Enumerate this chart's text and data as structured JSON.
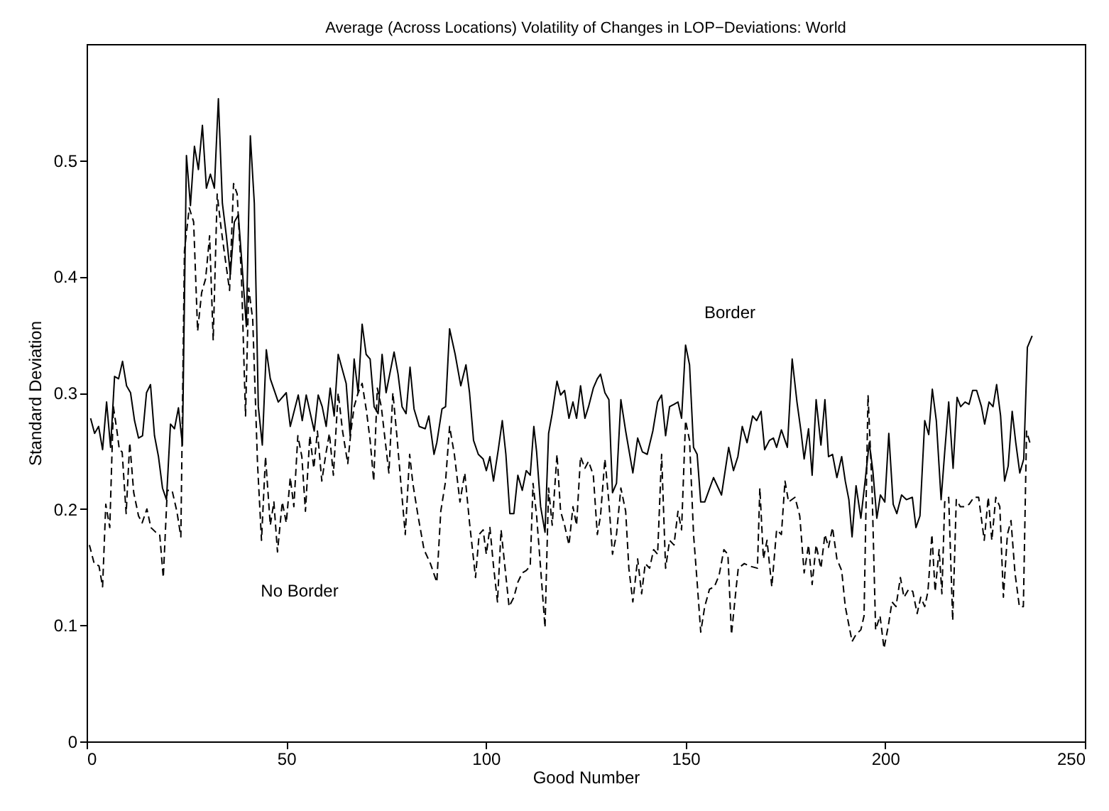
{
  "chart_data": {
    "type": "line",
    "title": "Average (Across Locations) Volatility of Changes in LOP−Deviations:  World",
    "xlabel": "Good Number",
    "ylabel": "Standard Deviation",
    "xlim": [
      0,
      250
    ],
    "xticks": [
      0,
      50,
      100,
      150,
      200,
      250
    ],
    "ylim": [
      0,
      0.6
    ],
    "yticks": [
      0,
      0.1,
      0.2,
      0.3,
      0.4,
      0.5
    ],
    "grid": false,
    "marker": "none",
    "series": [
      {
        "name": "Border",
        "color": "#000000",
        "line_style": "solid",
        "x": [
          1,
          2,
          3,
          4,
          5,
          6,
          7,
          8,
          9,
          10,
          11,
          12,
          13,
          14,
          15,
          16,
          17,
          18,
          19,
          20,
          21,
          22,
          23,
          24,
          25,
          26,
          27,
          28,
          29,
          30,
          31,
          32,
          33,
          34,
          35,
          36,
          37,
          38,
          39,
          40,
          41,
          42,
          43,
          44,
          45,
          46,
          48,
          50,
          51,
          53,
          54,
          55,
          57,
          58,
          59,
          60,
          61,
          62,
          63,
          65,
          66,
          67,
          68,
          69,
          70,
          71,
          72,
          73,
          74,
          75,
          77,
          78,
          79,
          80,
          81,
          82,
          83.3,
          84.8,
          85.7,
          87,
          87.7,
          89,
          89.9,
          90.9,
          92.3,
          93.7,
          95,
          95.9,
          96.9,
          98.1,
          99.3,
          100.1,
          101,
          101.9,
          103.1,
          104.1,
          105,
          106,
          107,
          108,
          109.1,
          110.1,
          111.1,
          112,
          112.7,
          113.7,
          114.8,
          115.7,
          116.6,
          117.8,
          118.7,
          119.7,
          120.8,
          121.8,
          122.7,
          123.7,
          124.8,
          125.7,
          126.9,
          127.9,
          128.7,
          129.8,
          130.8,
          131.7,
          132.7,
          133.8,
          135,
          136.8,
          138,
          139.2,
          140.4,
          141.8,
          143,
          144,
          145,
          146,
          147.1,
          148.1,
          149,
          150,
          151,
          152,
          152.9,
          153.8,
          154.8,
          157,
          159,
          160.8,
          162,
          163.1,
          164.2,
          165.4,
          166.8,
          167.8,
          168.9,
          169.8,
          171,
          172,
          172.8,
          174,
          175.5,
          176.7,
          177.9,
          178.9,
          179.7,
          180.8,
          181.7,
          182.7,
          183.9,
          184.9,
          185.8,
          186.8,
          187.9,
          189.1,
          190,
          190.9,
          191.7,
          192.7,
          193.9,
          194.9,
          196,
          196.9,
          197.9,
          198.8,
          199.9,
          200.9,
          202,
          202.9,
          204.1,
          205.3,
          206.8,
          207.7,
          208.7,
          209.9,
          210.9,
          211.8,
          212.8,
          214,
          214.9,
          215.9,
          217,
          218,
          218.9,
          220,
          221,
          221.9,
          222.9,
          224.1,
          224.9,
          226,
          227,
          227.9,
          228.9,
          229.9,
          230.8,
          231.8,
          232.7,
          233.7,
          234.7,
          235.6,
          236.8
        ],
        "values": [
          0.278,
          0.265,
          0.271,
          0.251,
          0.292,
          0.253,
          0.314,
          0.312,
          0.327,
          0.306,
          0.3,
          0.276,
          0.261,
          0.263,
          0.3,
          0.307,
          0.263,
          0.245,
          0.218,
          0.208,
          0.273,
          0.269,
          0.287,
          0.255,
          0.504,
          0.461,
          0.512,
          0.492,
          0.53,
          0.476,
          0.488,
          0.476,
          0.553,
          0.463,
          0.435,
          0.402,
          0.447,
          0.453,
          0.406,
          0.357,
          0.521,
          0.463,
          0.288,
          0.255,
          0.337,
          0.312,
          0.292,
          0.3,
          0.271,
          0.298,
          0.276,
          0.298,
          0.267,
          0.298,
          0.288,
          0.271,
          0.304,
          0.28,
          0.333,
          0.308,
          0.263,
          0.329,
          0.3,
          0.359,
          0.333,
          0.329,
          0.288,
          0.282,
          0.333,
          0.3,
          0.335,
          0.316,
          0.288,
          0.282,
          0.322,
          0.286,
          0.271,
          0.269,
          0.28,
          0.247,
          0.257,
          0.286,
          0.288,
          0.355,
          0.333,
          0.306,
          0.324,
          0.3,
          0.259,
          0.247,
          0.243,
          0.233,
          0.245,
          0.224,
          0.251,
          0.276,
          0.247,
          0.196,
          0.196,
          0.229,
          0.216,
          0.233,
          0.229,
          0.271,
          0.249,
          0.202,
          0.18,
          0.265,
          0.282,
          0.31,
          0.298,
          0.302,
          0.278,
          0.292,
          0.278,
          0.306,
          0.278,
          0.288,
          0.304,
          0.312,
          0.316,
          0.3,
          0.294,
          0.214,
          0.222,
          0.294,
          0.267,
          0.231,
          0.261,
          0.249,
          0.247,
          0.267,
          0.292,
          0.298,
          0.263,
          0.288,
          0.29,
          0.292,
          0.278,
          0.341,
          0.324,
          0.253,
          0.247,
          0.206,
          0.206,
          0.227,
          0.212,
          0.253,
          0.233,
          0.245,
          0.271,
          0.257,
          0.28,
          0.276,
          0.284,
          0.251,
          0.259,
          0.261,
          0.253,
          0.268,
          0.253,
          0.329,
          0.292,
          0.267,
          0.243,
          0.269,
          0.229,
          0.294,
          0.255,
          0.294,
          0.245,
          0.247,
          0.227,
          0.245,
          0.224,
          0.208,
          0.176,
          0.22,
          0.192,
          0.222,
          0.257,
          0.233,
          0.192,
          0.212,
          0.206,
          0.265,
          0.204,
          0.196,
          0.212,
          0.208,
          0.21,
          0.184,
          0.194,
          0.276,
          0.264,
          0.303,
          0.276,
          0.208,
          0.249,
          0.292,
          0.235,
          0.296,
          0.288,
          0.292,
          0.29,
          0.302,
          0.302,
          0.288,
          0.273,
          0.292,
          0.288,
          0.307,
          0.28,
          0.224,
          0.237,
          0.284,
          0.257,
          0.231,
          0.243,
          0.339,
          0.349
        ]
      },
      {
        "name": "No Border",
        "color": "#000000",
        "line_style": "dashed",
        "x": [
          0.7,
          1.9,
          3.1,
          4,
          4.8,
          5.8,
          6.7,
          7.6,
          8.2,
          8.9,
          9.9,
          10.8,
          11.8,
          13,
          13.9,
          15.1,
          16.1,
          17.3,
          18.3,
          19.2,
          20.2,
          21.4,
          22.6,
          23.6,
          24.5,
          25.7,
          26.8,
          27.8,
          28.8,
          29.8,
          30.8,
          31.7,
          32.7,
          33.7,
          34.6,
          35.8,
          36.8,
          37.7,
          38.8,
          39.8,
          40.6,
          41.6,
          42.8,
          43.8,
          44.8,
          46,
          46.9,
          47.8,
          49,
          50,
          51,
          51.9,
          52.9,
          53.9,
          54.8,
          55.9,
          56.9,
          57.8,
          58.9,
          59.9,
          60.8,
          61.8,
          63,
          64.1,
          65.4,
          66.2,
          67,
          68,
          69,
          70.1,
          71,
          71.9,
          72.8,
          73.8,
          74.9,
          75.7,
          76.7,
          77.7,
          78.9,
          79.8,
          80.9,
          81.7,
          83,
          84.5,
          86.1,
          87.7,
          88.7,
          89.9,
          90.9,
          92.1,
          93.5,
          94.7,
          95.9,
          97.4,
          98.3,
          99.3,
          100.1,
          101,
          101.9,
          102.9,
          103.8,
          104.8,
          105.8,
          107,
          108,
          109.1,
          110.1,
          111.1,
          111.8,
          112.7,
          113.7,
          114.8,
          115.7,
          116.6,
          117.8,
          118.7,
          119.7,
          120.8,
          121.8,
          122.7,
          123.7,
          124.8,
          125.7,
          126.9,
          127.9,
          128.7,
          129.8,
          130.8,
          131.7,
          132.7,
          133.8,
          135,
          135.8,
          136.8,
          138,
          139,
          139.9,
          141,
          142,
          143,
          144,
          145,
          146,
          147.1,
          148.1,
          149,
          150,
          151,
          152,
          152.9,
          153.8,
          154.8,
          156,
          157.2,
          158.4,
          159.6,
          160.6,
          161.5,
          162.7,
          163.2,
          164.7,
          165.9,
          168,
          168.6,
          169.5,
          170.4,
          171.6,
          172.8,
          174,
          174.9,
          175.8,
          177.4,
          178.6,
          179.7,
          180.8,
          181.7,
          182.7,
          183.9,
          184.9,
          185.8,
          186.8,
          187.9,
          189.1,
          190,
          191.7,
          192.7,
          193.9,
          194.7,
          195.7,
          196.7,
          197.6,
          198.7,
          199.7,
          200.8,
          201.7,
          202.7,
          203.8,
          204.7,
          205.9,
          206.9,
          208,
          208.9,
          209.9,
          210.7,
          211.7,
          212.5,
          213.5,
          214.2,
          214.9,
          215.9,
          216.9,
          217.8,
          218.8,
          219.8,
          221,
          222.2,
          223.4,
          224.8,
          225.8,
          226.7,
          227.7,
          228.7,
          229.6,
          230.6,
          231.5,
          232.5,
          233.6,
          234.6,
          235.4,
          236.4
        ],
        "values": [
          0.169,
          0.153,
          0.151,
          0.133,
          0.204,
          0.184,
          0.288,
          0.267,
          0.251,
          0.249,
          0.196,
          0.257,
          0.214,
          0.194,
          0.188,
          0.2,
          0.184,
          0.18,
          0.178,
          0.141,
          0.216,
          0.216,
          0.198,
          0.176,
          0.422,
          0.459,
          0.447,
          0.353,
          0.386,
          0.398,
          0.435,
          0.345,
          0.471,
          0.441,
          0.418,
          0.388,
          0.48,
          0.471,
          0.398,
          0.28,
          0.39,
          0.363,
          0.239,
          0.173,
          0.245,
          0.186,
          0.206,
          0.163,
          0.206,
          0.188,
          0.227,
          0.202,
          0.263,
          0.245,
          0.198,
          0.263,
          0.235,
          0.267,
          0.224,
          0.247,
          0.265,
          0.229,
          0.3,
          0.267,
          0.239,
          0.267,
          0.288,
          0.3,
          0.308,
          0.284,
          0.259,
          0.224,
          0.304,
          0.288,
          0.255,
          0.231,
          0.3,
          0.263,
          0.214,
          0.178,
          0.247,
          0.222,
          0.194,
          0.165,
          0.153,
          0.137,
          0.198,
          0.224,
          0.271,
          0.247,
          0.206,
          0.231,
          0.188,
          0.141,
          0.178,
          0.182,
          0.161,
          0.184,
          0.151,
          0.12,
          0.182,
          0.149,
          0.116,
          0.124,
          0.137,
          0.145,
          0.147,
          0.151,
          0.222,
          0.194,
          0.149,
          0.098,
          0.218,
          0.186,
          0.247,
          0.198,
          0.186,
          0.169,
          0.202,
          0.186,
          0.245,
          0.235,
          0.241,
          0.229,
          0.178,
          0.194,
          0.243,
          0.206,
          0.161,
          0.178,
          0.218,
          0.198,
          0.149,
          0.12,
          0.157,
          0.127,
          0.153,
          0.149,
          0.165,
          0.161,
          0.247,
          0.149,
          0.173,
          0.169,
          0.198,
          0.182,
          0.276,
          0.259,
          0.178,
          0.137,
          0.094,
          0.116,
          0.131,
          0.133,
          0.143,
          0.165,
          0.161,
          0.092,
          0.133,
          0.149,
          0.153,
          0.151,
          0.149,
          0.218,
          0.157,
          0.173,
          0.133,
          0.182,
          0.178,
          0.224,
          0.206,
          0.21,
          0.194,
          0.145,
          0.169,
          0.135,
          0.169,
          0.149,
          0.178,
          0.167,
          0.184,
          0.157,
          0.147,
          0.116,
          0.086,
          0.092,
          0.096,
          0.108,
          0.298,
          0.218,
          0.096,
          0.108,
          0.08,
          0.1,
          0.12,
          0.116,
          0.141,
          0.124,
          0.131,
          0.129,
          0.11,
          0.124,
          0.116,
          0.129,
          0.178,
          0.129,
          0.165,
          0.127,
          0.206,
          0.21,
          0.104,
          0.208,
          0.202,
          0.202,
          0.204,
          0.21,
          0.21,
          0.173,
          0.21,
          0.173,
          0.21,
          0.202,
          0.124,
          0.178,
          0.19,
          0.145,
          0.116,
          0.116,
          0.267,
          0.255
        ]
      }
    ]
  }
}
